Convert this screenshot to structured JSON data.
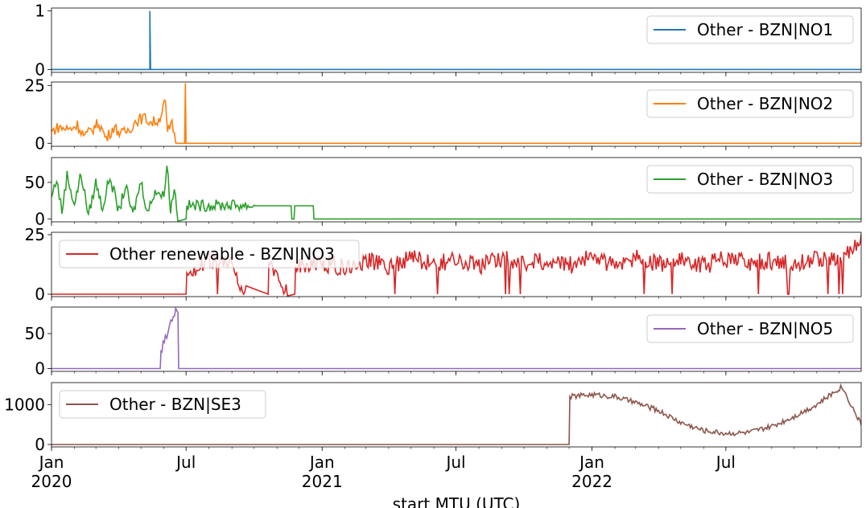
{
  "chart_data": {
    "type": "line",
    "xlabel": "start MTU (UTC)",
    "x_range": [
      "2020-01-01",
      "2022-12-31"
    ],
    "x_ticks": [
      {
        "date": "2020-01-01",
        "label": "Jan",
        "year": "2020"
      },
      {
        "date": "2020-07-01",
        "label": "Jul",
        "year": ""
      },
      {
        "date": "2021-01-01",
        "label": "Jan",
        "year": "2021"
      },
      {
        "date": "2021-07-01",
        "label": "Jul",
        "year": ""
      },
      {
        "date": "2022-01-01",
        "label": "Jan",
        "year": "2022"
      },
      {
        "date": "2022-07-01",
        "label": "Jul",
        "year": ""
      }
    ],
    "panels": [
      {
        "name": "Other - BZN|NO1",
        "color": "#1f77b4",
        "ylim": [
          -0.05,
          1.05
        ],
        "yticks": [
          0,
          1
        ],
        "legend_position": "upper-right",
        "points": [
          [
            "2020-01-01",
            0
          ],
          [
            "2020-05-13",
            0
          ],
          [
            "2020-05-13",
            1
          ],
          [
            "2020-05-14",
            0
          ],
          [
            "2022-12-31",
            0
          ]
        ]
      },
      {
        "name": "Other - BZN|NO2",
        "color": "#ff7f0e",
        "ylim": [
          -1.3,
          26.5
        ],
        "yticks": [
          0,
          25
        ],
        "legend_position": "upper-right",
        "points": [
          [
            "2020-01-01",
            5
          ],
          [
            "2020-01-10",
            7
          ],
          [
            "2020-01-25",
            6
          ],
          [
            "2020-02-05",
            8
          ],
          [
            "2020-02-15",
            3
          ],
          [
            "2020-02-25",
            6
          ],
          [
            "2020-03-05",
            9
          ],
          [
            "2020-03-15",
            2
          ],
          [
            "2020-03-25",
            7
          ],
          [
            "2020-04-05",
            4
          ],
          [
            "2020-04-15",
            6
          ],
          [
            "2020-04-25",
            10
          ],
          [
            "2020-05-05",
            11
          ],
          [
            "2020-05-15",
            9
          ],
          [
            "2020-05-25",
            10
          ],
          [
            "2020-06-03",
            18
          ],
          [
            "2020-06-06",
            5
          ],
          [
            "2020-06-12",
            8
          ],
          [
            "2020-06-17",
            2
          ],
          [
            "2020-06-20",
            0
          ],
          [
            "2020-06-29",
            0
          ],
          [
            "2020-06-30",
            26
          ],
          [
            "2020-07-01",
            0
          ],
          [
            "2022-12-31",
            0
          ]
        ]
      },
      {
        "name": "Other - BZN|NO3",
        "color": "#2ca02c",
        "ylim": [
          -4,
          84
        ],
        "yticks": [
          0,
          50
        ],
        "legend_position": "upper-right",
        "points": [
          [
            "2020-01-01",
            30
          ],
          [
            "2020-01-08",
            55
          ],
          [
            "2020-01-15",
            10
          ],
          [
            "2020-01-22",
            60
          ],
          [
            "2020-02-01",
            20
          ],
          [
            "2020-02-10",
            62
          ],
          [
            "2020-02-20",
            5
          ],
          [
            "2020-03-01",
            50
          ],
          [
            "2020-03-10",
            15
          ],
          [
            "2020-03-20",
            58
          ],
          [
            "2020-04-01",
            10
          ],
          [
            "2020-04-10",
            45
          ],
          [
            "2020-04-20",
            5
          ],
          [
            "2020-05-01",
            52
          ],
          [
            "2020-05-10",
            8
          ],
          [
            "2020-05-20",
            40
          ],
          [
            "2020-06-01",
            30
          ],
          [
            "2020-06-05",
            80
          ],
          [
            "2020-06-10",
            10
          ],
          [
            "2020-06-15",
            45
          ],
          [
            "2020-06-20",
            0
          ],
          [
            "2020-07-01",
            0
          ],
          [
            "2020-07-02",
            18
          ],
          [
            "2020-09-01",
            19
          ],
          [
            "2020-10-01",
            18
          ],
          [
            "2020-11-20",
            18
          ],
          [
            "2020-11-21",
            0
          ],
          [
            "2020-11-24",
            0
          ],
          [
            "2020-11-25",
            18
          ],
          [
            "2020-12-20",
            18
          ],
          [
            "2020-12-21",
            0
          ],
          [
            "2022-12-31",
            0
          ]
        ]
      },
      {
        "name": "Other renewable - BZN|NO3",
        "color": "#d62728",
        "ylim": [
          -1,
          26
        ],
        "yticks": [
          0,
          25
        ],
        "legend_position": "upper-left",
        "points": [
          [
            "2020-01-01",
            0
          ],
          [
            "2020-07-01",
            0
          ],
          [
            "2020-07-02",
            9
          ],
          [
            "2020-08-01",
            14
          ],
          [
            "2020-09-01",
            12
          ],
          [
            "2020-09-20",
            0
          ],
          [
            "2020-10-20",
            0
          ],
          [
            "2020-10-21",
            13
          ],
          [
            "2020-11-15",
            0
          ],
          [
            "2020-11-25",
            0
          ],
          [
            "2020-11-26",
            12
          ],
          [
            "2021-01-01",
            13
          ],
          [
            "2021-02-01",
            11
          ],
          [
            "2021-03-01",
            14
          ],
          [
            "2021-04-01",
            12
          ],
          [
            "2021-05-01",
            15
          ],
          [
            "2021-06-01",
            13
          ],
          [
            "2021-07-01",
            14
          ],
          [
            "2021-08-01",
            12
          ],
          [
            "2021-09-01",
            15
          ],
          [
            "2021-10-01",
            13
          ],
          [
            "2021-11-01",
            14
          ],
          [
            "2021-12-01",
            12
          ],
          [
            "2022-01-01",
            16
          ],
          [
            "2022-02-01",
            12
          ],
          [
            "2022-03-01",
            15
          ],
          [
            "2022-04-01",
            13
          ],
          [
            "2022-05-01",
            14
          ],
          [
            "2022-06-01",
            12
          ],
          [
            "2022-07-01",
            15
          ],
          [
            "2022-08-01",
            13
          ],
          [
            "2022-09-01",
            14
          ],
          [
            "2022-10-01",
            12
          ],
          [
            "2022-11-01",
            15
          ],
          [
            "2022-12-01",
            14
          ],
          [
            "2022-12-31",
            22
          ]
        ]
      },
      {
        "name": "Other - BZN|NO5",
        "color": "#9467bd",
        "ylim": [
          -4,
          88
        ],
        "yticks": [
          0,
          50
        ],
        "legend_position": "upper-right",
        "points": [
          [
            "2020-01-01",
            0
          ],
          [
            "2020-05-27",
            0
          ],
          [
            "2020-05-28",
            25
          ],
          [
            "2020-06-03",
            40
          ],
          [
            "2020-06-07",
            55
          ],
          [
            "2020-06-12",
            75
          ],
          [
            "2020-06-17",
            82
          ],
          [
            "2020-06-20",
            80
          ],
          [
            "2020-06-21",
            0
          ],
          [
            "2022-12-31",
            0
          ]
        ]
      },
      {
        "name": "Other - BZN|SE3",
        "color": "#8c564b",
        "ylim": [
          -60,
          1550
        ],
        "yticks": [
          0,
          1000
        ],
        "legend_position": "upper-left",
        "points": [
          [
            "2020-01-01",
            0
          ],
          [
            "2021-12-01",
            0
          ],
          [
            "2021-12-02",
            1200
          ],
          [
            "2022-01-01",
            1250
          ],
          [
            "2022-02-01",
            1200
          ],
          [
            "2022-03-01",
            1050
          ],
          [
            "2022-04-01",
            850
          ],
          [
            "2022-05-01",
            550
          ],
          [
            "2022-06-01",
            350
          ],
          [
            "2022-07-01",
            280
          ],
          [
            "2022-08-01",
            300
          ],
          [
            "2022-09-01",
            450
          ],
          [
            "2022-10-01",
            700
          ],
          [
            "2022-11-01",
            1000
          ],
          [
            "2022-12-05",
            1450
          ],
          [
            "2022-12-20",
            900
          ],
          [
            "2022-12-31",
            500
          ]
        ]
      }
    ]
  }
}
